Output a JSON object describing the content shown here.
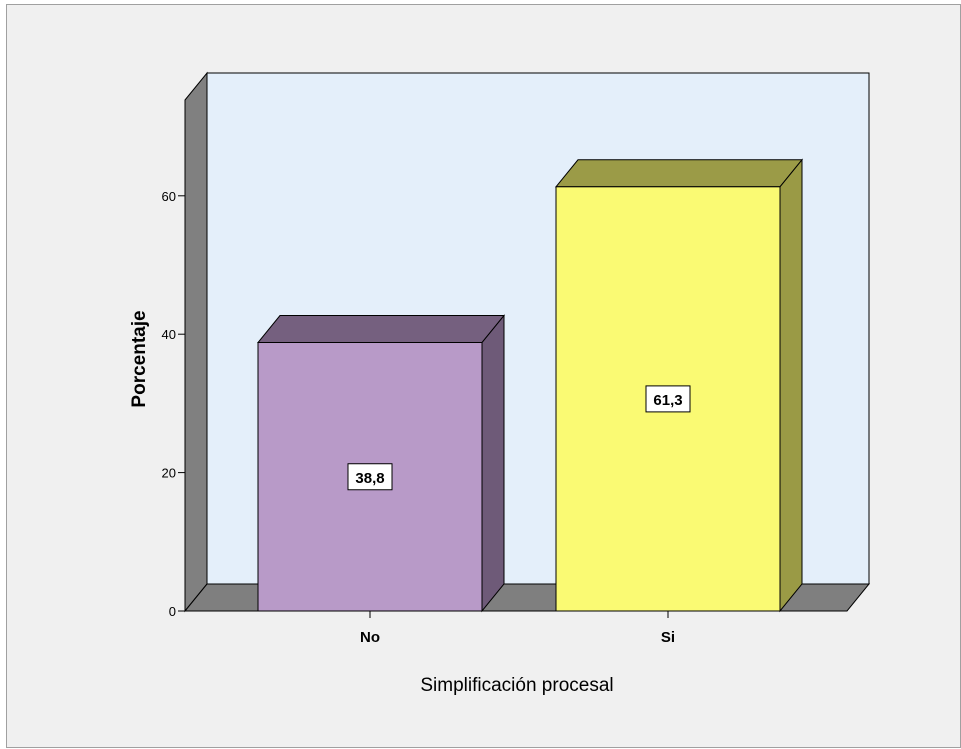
{
  "chart_data": {
    "type": "bar",
    "categories": [
      "No",
      "Si"
    ],
    "values": [
      38.8,
      61.3
    ],
    "value_labels": [
      "38,8",
      "61,3"
    ],
    "title": "",
    "xlabel": "Simplificación procesal",
    "ylabel": "Porcentaje",
    "ylim": [
      0,
      75
    ],
    "yticks": [
      0,
      20,
      40,
      60
    ],
    "ytick_labels": [
      "0",
      "20",
      "40",
      "60"
    ],
    "grid": false,
    "style": "3d",
    "colors": {
      "plot_background": "#e4effa",
      "page_background": "#f0f0f0",
      "floor": "#7f7f7f",
      "walls": "#808080",
      "bars": [
        {
          "front": "#b89ac8",
          "top": "#75607f",
          "side": "#6e5a78"
        },
        {
          "front": "#fafa73",
          "top": "#9b9b47",
          "side": "#9a9a45"
        }
      ]
    }
  }
}
